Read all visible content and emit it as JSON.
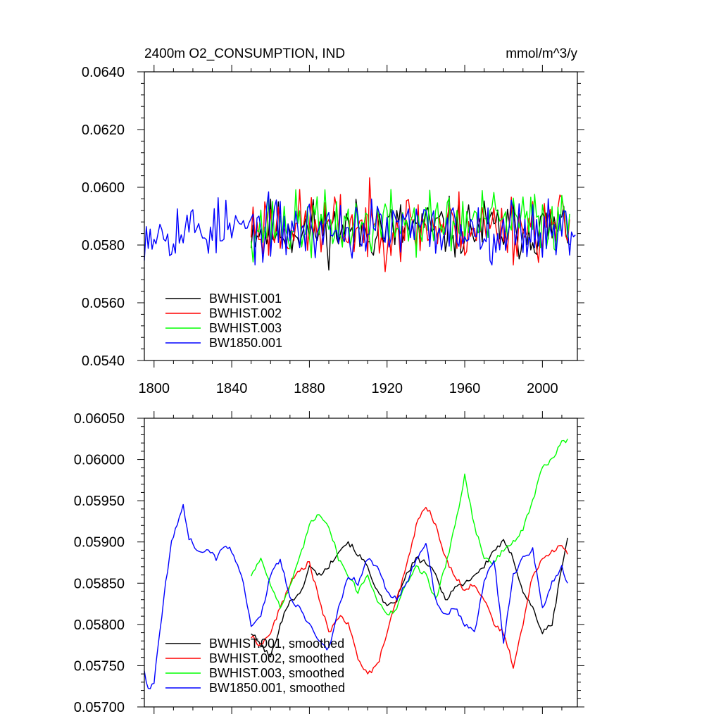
{
  "chart_data": [
    {
      "type": "line",
      "title": "2400m O2_CONSUMPTION, IND",
      "units_label": "mmol/m^3/y",
      "xlim": [
        1795,
        2018
      ],
      "ylim": [
        0.054,
        0.064
      ],
      "xticks": [
        1800,
        1840,
        1880,
        1920,
        1960,
        2000
      ],
      "xtick_labels": [
        "1800",
        "1840",
        "1880",
        "1920",
        "1960",
        "2000"
      ],
      "yticks": [
        0.054,
        0.056,
        0.058,
        0.06,
        0.062,
        0.064
      ],
      "ytick_labels": [
        "0.0540",
        "0.0560",
        "0.0580",
        "0.0600",
        "0.0620",
        "0.0640"
      ],
      "legend_position": "lower-left",
      "series": [
        {
          "name": "BWHIST.001",
          "color": "#000000",
          "start": 1850,
          "end": 2014,
          "base": 0.05855,
          "amp": 0.0009,
          "trend": 0.0,
          "seed": 11
        },
        {
          "name": "BWHIST.002",
          "color": "#ff0000",
          "start": 1850,
          "end": 2014,
          "base": 0.05865,
          "amp": 0.00105,
          "trend": 0.0,
          "seed": 23
        },
        {
          "name": "BWHIST.003",
          "color": "#00ff00",
          "start": 1850,
          "end": 2014,
          "base": 0.05865,
          "amp": 0.00095,
          "trend": 0.0002,
          "seed": 37
        },
        {
          "name": "BW1850.001",
          "color": "#0000ff",
          "start": 1795,
          "end": 2017,
          "base": 0.05855,
          "amp": 0.0009,
          "trend": 0.0,
          "seed": 53
        }
      ]
    },
    {
      "type": "line",
      "title": "",
      "xlim": [
        1795,
        2018
      ],
      "ylim": [
        0.057,
        0.0605
      ],
      "xticks": [
        1800,
        1840,
        1880,
        1920,
        1960,
        2000
      ],
      "yticks": [
        0.057,
        0.0575,
        0.058,
        0.0585,
        0.059,
        0.0595,
        0.06,
        0.0605
      ],
      "ytick_labels": [
        "0.05700",
        "0.05750",
        "0.05800",
        "0.05850",
        "0.05900",
        "0.05950",
        "0.06000",
        "0.06050"
      ],
      "legend_position": "lower-left",
      "series": [
        {
          "name": "BWHIST.001, smoothed",
          "color": "#000000",
          "x": [
            1850,
            1855,
            1860,
            1865,
            1870,
            1875,
            1880,
            1885,
            1890,
            1895,
            1900,
            1905,
            1910,
            1915,
            1920,
            1925,
            1930,
            1935,
            1940,
            1945,
            1950,
            1955,
            1960,
            1965,
            1970,
            1975,
            1980,
            1985,
            1990,
            1995,
            2000,
            2005,
            2010,
            2013
          ],
          "y": [
            0.0579,
            0.05775,
            0.0576,
            0.058,
            0.0583,
            0.05835,
            0.0587,
            0.0586,
            0.0587,
            0.0589,
            0.059,
            0.05885,
            0.0587,
            0.0584,
            0.0582,
            0.0583,
            0.0586,
            0.0588,
            0.05875,
            0.0586,
            0.0583,
            0.05845,
            0.0585,
            0.0586,
            0.0587,
            0.0589,
            0.059,
            0.0588,
            0.0584,
            0.0582,
            0.0579,
            0.058,
            0.0587,
            0.05905
          ]
        },
        {
          "name": "BWHIST.002, smoothed",
          "color": "#ff0000",
          "x": [
            1850,
            1855,
            1860,
            1865,
            1870,
            1875,
            1880,
            1885,
            1890,
            1895,
            1900,
            1905,
            1910,
            1915,
            1920,
            1925,
            1930,
            1935,
            1940,
            1945,
            1950,
            1955,
            1960,
            1965,
            1970,
            1975,
            1980,
            1985,
            1990,
            1995,
            2000,
            2005,
            2010,
            2013
          ],
          "y": [
            0.05785,
            0.05775,
            0.0579,
            0.0582,
            0.0585,
            0.05865,
            0.05875,
            0.0583,
            0.0579,
            0.0581,
            0.058,
            0.0576,
            0.0574,
            0.0575,
            0.0579,
            0.0583,
            0.0587,
            0.0592,
            0.05945,
            0.0592,
            0.0588,
            0.0586,
            0.0584,
            0.0585,
            0.0583,
            0.058,
            0.0579,
            0.0575,
            0.058,
            0.0586,
            0.0588,
            0.0589,
            0.05895,
            0.05885
          ]
        },
        {
          "name": "BWHIST.003, smoothed",
          "color": "#00ff00",
          "x": [
            1850,
            1855,
            1860,
            1865,
            1870,
            1875,
            1880,
            1885,
            1890,
            1895,
            1900,
            1905,
            1910,
            1915,
            1920,
            1925,
            1930,
            1935,
            1940,
            1945,
            1950,
            1955,
            1960,
            1965,
            1970,
            1975,
            1980,
            1985,
            1990,
            1995,
            2000,
            2005,
            2010,
            2013
          ],
          "y": [
            0.0586,
            0.0588,
            0.0585,
            0.0582,
            0.05845,
            0.0588,
            0.0592,
            0.05935,
            0.0592,
            0.0588,
            0.0586,
            0.0584,
            0.0586,
            0.0583,
            0.0581,
            0.0582,
            0.0585,
            0.0587,
            0.0586,
            0.0583,
            0.0587,
            0.0592,
            0.0598,
            0.0592,
            0.0588,
            0.05875,
            0.0589,
            0.059,
            0.05915,
            0.0595,
            0.0599,
            0.06,
            0.0602,
            0.06025
          ]
        },
        {
          "name": "BW1850.001, smoothed",
          "color": "#0000ff",
          "x": [
            1795,
            1797,
            1800,
            1803,
            1806,
            1809,
            1812,
            1815,
            1818,
            1821,
            1824,
            1828,
            1832,
            1836,
            1840,
            1845,
            1850,
            1855,
            1860,
            1865,
            1870,
            1875,
            1880,
            1885,
            1890,
            1895,
            1900,
            1905,
            1910,
            1915,
            1920,
            1925,
            1930,
            1935,
            1940,
            1945,
            1950,
            1955,
            1960,
            1965,
            1970,
            1975,
            1980,
            1985,
            1990,
            1995,
            2000,
            2005,
            2010,
            2013
          ],
          "y": [
            0.05745,
            0.0572,
            0.0573,
            0.0579,
            0.0585,
            0.059,
            0.0592,
            0.05945,
            0.05905,
            0.05895,
            0.05885,
            0.0589,
            0.0588,
            0.05895,
            0.0589,
            0.0586,
            0.058,
            0.0581,
            0.0586,
            0.0588,
            0.0583,
            0.0582,
            0.058,
            0.0578,
            0.0577,
            0.0582,
            0.0586,
            0.0585,
            0.0588,
            0.0587,
            0.0584,
            0.0583,
            0.0585,
            0.0588,
            0.059,
            0.0583,
            0.0581,
            0.0582,
            0.058,
            0.0579,
            0.0585,
            0.0588,
            0.0578,
            0.0586,
            0.0588,
            0.0589,
            0.0582,
            0.0585,
            0.0587,
            0.0585
          ]
        }
      ]
    }
  ]
}
